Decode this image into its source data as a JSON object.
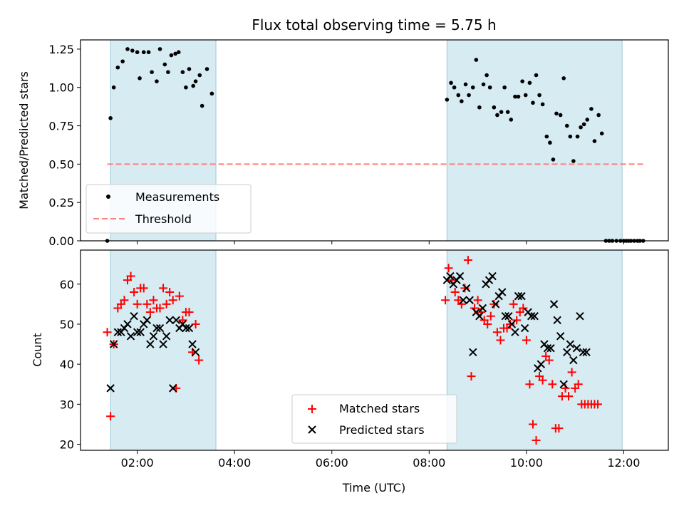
{
  "chart_data": [
    {
      "type": "scatter",
      "title": "Flux total observing time = 5.75 h",
      "xlabel": "",
      "ylabel": "Matched/Predicted stars",
      "xlim": [
        "00:50",
        "12:55"
      ],
      "ylim": [
        0,
        1.31
      ],
      "yticks": [
        "0.00",
        "0.25",
        "0.50",
        "0.75",
        "1.00",
        "1.25"
      ],
      "shaded_intervals": [
        [
          "01:27",
          "03:37"
        ],
        [
          "08:22",
          "11:58"
        ]
      ],
      "legend_position": "lower-left",
      "series": [
        {
          "name": "Measurements",
          "marker": "dot",
          "color": "#000000",
          "points": [
            [
              "01:23",
              0.0
            ],
            [
              "01:27",
              0.8
            ],
            [
              "01:31",
              1.0
            ],
            [
              "01:36",
              1.13
            ],
            [
              "01:42",
              1.17
            ],
            [
              "01:48",
              1.25
            ],
            [
              "01:54",
              1.24
            ],
            [
              "02:00",
              1.23
            ],
            [
              "02:03",
              1.06
            ],
            [
              "02:08",
              1.23
            ],
            [
              "02:14",
              1.23
            ],
            [
              "02:18",
              1.1
            ],
            [
              "02:24",
              1.04
            ],
            [
              "02:28",
              1.25
            ],
            [
              "02:34",
              1.15
            ],
            [
              "02:38",
              1.1
            ],
            [
              "02:42",
              1.21
            ],
            [
              "02:47",
              1.22
            ],
            [
              "02:51",
              1.23
            ],
            [
              "02:56",
              1.1
            ],
            [
              "03:00",
              1.0
            ],
            [
              "03:04",
              1.12
            ],
            [
              "03:09",
              1.01
            ],
            [
              "03:12",
              1.04
            ],
            [
              "03:17",
              1.08
            ],
            [
              "03:20",
              0.88
            ],
            [
              "03:26",
              1.12
            ],
            [
              "03:32",
              0.96
            ],
            [
              "08:22",
              0.92
            ],
            [
              "08:27",
              1.03
            ],
            [
              "08:31",
              1.0
            ],
            [
              "08:36",
              0.95
            ],
            [
              "08:40",
              0.91
            ],
            [
              "08:45",
              1.02
            ],
            [
              "08:49",
              0.95
            ],
            [
              "08:54",
              1.0
            ],
            [
              "08:58",
              1.18
            ],
            [
              "09:02",
              0.87
            ],
            [
              "09:07",
              1.02
            ],
            [
              "09:11",
              1.08
            ],
            [
              "09:15",
              1.0
            ],
            [
              "09:20",
              0.87
            ],
            [
              "09:24",
              0.82
            ],
            [
              "09:29",
              0.84
            ],
            [
              "09:33",
              1.0
            ],
            [
              "09:37",
              0.84
            ],
            [
              "09:41",
              0.79
            ],
            [
              "09:46",
              0.94
            ],
            [
              "09:50",
              0.94
            ],
            [
              "09:55",
              1.04
            ],
            [
              "09:59",
              0.95
            ],
            [
              "10:04",
              1.03
            ],
            [
              "10:08",
              0.9
            ],
            [
              "10:12",
              1.08
            ],
            [
              "10:16",
              0.95
            ],
            [
              "10:20",
              0.89
            ],
            [
              "10:25",
              0.68
            ],
            [
              "10:29",
              0.64
            ],
            [
              "10:33",
              0.53
            ],
            [
              "10:37",
              0.83
            ],
            [
              "10:42",
              0.82
            ],
            [
              "10:46",
              1.06
            ],
            [
              "10:50",
              0.75
            ],
            [
              "10:54",
              0.68
            ],
            [
              "10:58",
              0.52
            ],
            [
              "11:03",
              0.68
            ],
            [
              "11:07",
              0.74
            ],
            [
              "11:11",
              0.76
            ],
            [
              "11:15",
              0.79
            ],
            [
              "11:20",
              0.86
            ],
            [
              "11:24",
              0.65
            ],
            [
              "11:29",
              0.82
            ],
            [
              "11:33",
              0.7
            ],
            [
              "11:38",
              0.0
            ],
            [
              "11:42",
              0.0
            ],
            [
              "11:46",
              0.0
            ],
            [
              "11:51",
              0.0
            ],
            [
              "11:56",
              0.0
            ],
            [
              "12:00",
              0.0
            ],
            [
              "12:03",
              0.0
            ],
            [
              "12:06",
              0.0
            ],
            [
              "12:09",
              0.0
            ],
            [
              "12:13",
              0.0
            ],
            [
              "12:17",
              0.0
            ],
            [
              "12:20",
              0.0
            ],
            [
              "12:24",
              0.0
            ]
          ]
        },
        {
          "name": "Threshold",
          "line_style": "dashed",
          "color": "#ff7f7f",
          "points": [
            [
              "01:23",
              0.5
            ],
            [
              "12:24",
              0.5
            ]
          ]
        }
      ]
    },
    {
      "type": "scatter",
      "title": "",
      "xlabel": "Time (UTC)",
      "ylabel": "Count",
      "xlim": [
        "00:50",
        "12:55"
      ],
      "ylim": [
        18.5,
        68.5
      ],
      "xticks": [
        "02:00",
        "04:00",
        "06:00",
        "08:00",
        "10:00",
        "12:00"
      ],
      "yticks": [
        "20",
        "30",
        "40",
        "50",
        "60"
      ],
      "shaded_intervals": [
        [
          "01:27",
          "03:37"
        ],
        [
          "08:22",
          "11:58"
        ]
      ],
      "legend_position": "lower-center",
      "series": [
        {
          "name": "Matched stars",
          "marker": "plus",
          "color": "#ff0000",
          "points": [
            [
              "01:23",
              48
            ],
            [
              "01:27",
              27
            ],
            [
              "01:31",
              45
            ],
            [
              "01:36",
              54
            ],
            [
              "01:40",
              55
            ],
            [
              "01:44",
              56
            ],
            [
              "01:48",
              61
            ],
            [
              "01:52",
              62
            ],
            [
              "01:56",
              58
            ],
            [
              "02:00",
              55
            ],
            [
              "02:04",
              59
            ],
            [
              "02:08",
              59
            ],
            [
              "02:12",
              55
            ],
            [
              "02:16",
              53
            ],
            [
              "02:20",
              56
            ],
            [
              "02:24",
              54
            ],
            [
              "02:28",
              54
            ],
            [
              "02:32",
              59
            ],
            [
              "02:36",
              55
            ],
            [
              "02:40",
              58
            ],
            [
              "02:44",
              56
            ],
            [
              "02:48",
              34
            ],
            [
              "02:52",
              57
            ],
            [
              "02:56",
              51
            ],
            [
              "03:00",
              53
            ],
            [
              "03:04",
              53
            ],
            [
              "03:08",
              43
            ],
            [
              "03:12",
              50
            ],
            [
              "03:16",
              41
            ],
            [
              "08:20",
              56
            ],
            [
              "08:24",
              64
            ],
            [
              "08:28",
              61
            ],
            [
              "08:32",
              58
            ],
            [
              "08:36",
              56
            ],
            [
              "08:40",
              55
            ],
            [
              "08:44",
              59
            ],
            [
              "08:48",
              66
            ],
            [
              "08:52",
              37
            ],
            [
              "08:56",
              54
            ],
            [
              "09:00",
              56
            ],
            [
              "09:04",
              53
            ],
            [
              "09:08",
              51
            ],
            [
              "09:12",
              50
            ],
            [
              "09:16",
              52
            ],
            [
              "09:20",
              55
            ],
            [
              "09:24",
              48
            ],
            [
              "09:28",
              46
            ],
            [
              "09:32",
              49
            ],
            [
              "09:36",
              49
            ],
            [
              "09:40",
              50
            ],
            [
              "09:44",
              55
            ],
            [
              "09:48",
              51
            ],
            [
              "09:52",
              53
            ],
            [
              "09:56",
              54
            ],
            [
              "10:00",
              46
            ],
            [
              "10:04",
              35
            ],
            [
              "10:08",
              25
            ],
            [
              "10:12",
              21
            ],
            [
              "10:16",
              37
            ],
            [
              "10:20",
              36
            ],
            [
              "10:24",
              42
            ],
            [
              "10:28",
              41
            ],
            [
              "10:32",
              35
            ],
            [
              "10:36",
              24
            ],
            [
              "10:40",
              24
            ],
            [
              "10:44",
              32
            ],
            [
              "10:48",
              34
            ],
            [
              "10:52",
              32
            ],
            [
              "10:56",
              38
            ],
            [
              "11:00",
              34
            ],
            [
              "11:04",
              35
            ],
            [
              "11:08",
              30
            ],
            [
              "11:12",
              30
            ],
            [
              "11:16",
              30
            ],
            [
              "11:20",
              30
            ],
            [
              "11:24",
              30
            ],
            [
              "11:28",
              30
            ]
          ]
        },
        {
          "name": "Predicted stars",
          "marker": "x",
          "color": "#000000",
          "points": [
            [
              "01:27",
              34
            ],
            [
              "01:31",
              45
            ],
            [
              "01:36",
              48
            ],
            [
              "01:40",
              48
            ],
            [
              "01:44",
              49
            ],
            [
              "01:48",
              50
            ],
            [
              "01:52",
              47
            ],
            [
              "01:56",
              52
            ],
            [
              "02:00",
              48
            ],
            [
              "02:04",
              48
            ],
            [
              "02:08",
              50
            ],
            [
              "02:12",
              51
            ],
            [
              "02:16",
              45
            ],
            [
              "02:20",
              47
            ],
            [
              "02:24",
              49
            ],
            [
              "02:28",
              49
            ],
            [
              "02:32",
              45
            ],
            [
              "02:36",
              47
            ],
            [
              "02:40",
              51
            ],
            [
              "02:44",
              34
            ],
            [
              "02:48",
              51
            ],
            [
              "02:52",
              49
            ],
            [
              "02:56",
              50
            ],
            [
              "03:00",
              49
            ],
            [
              "03:04",
              49
            ],
            [
              "03:08",
              45
            ],
            [
              "03:12",
              43
            ],
            [
              "08:22",
              61
            ],
            [
              "08:26",
              62
            ],
            [
              "08:30",
              60
            ],
            [
              "08:34",
              61
            ],
            [
              "08:38",
              62
            ],
            [
              "08:42",
              56
            ],
            [
              "08:46",
              59
            ],
            [
              "08:50",
              56
            ],
            [
              "08:54",
              43
            ],
            [
              "08:58",
              53
            ],
            [
              "09:02",
              52
            ],
            [
              "09:06",
              54
            ],
            [
              "09:10",
              60
            ],
            [
              "09:14",
              61
            ],
            [
              "09:18",
              62
            ],
            [
              "09:22",
              55
            ],
            [
              "09:26",
              57
            ],
            [
              "09:30",
              58
            ],
            [
              "09:34",
              52
            ],
            [
              "09:38",
              52
            ],
            [
              "09:42",
              50
            ],
            [
              "09:46",
              48
            ],
            [
              "09:50",
              57
            ],
            [
              "09:54",
              57
            ],
            [
              "09:58",
              49
            ],
            [
              "10:02",
              53
            ],
            [
              "10:06",
              52
            ],
            [
              "10:10",
              52
            ],
            [
              "10:14",
              39
            ],
            [
              "10:18",
              40
            ],
            [
              "10:22",
              45
            ],
            [
              "10:26",
              44
            ],
            [
              "10:30",
              44
            ],
            [
              "10:34",
              55
            ],
            [
              "10:38",
              51
            ],
            [
              "10:42",
              47
            ],
            [
              "10:46",
              35
            ],
            [
              "10:50",
              43
            ],
            [
              "10:54",
              45
            ],
            [
              "10:58",
              41
            ],
            [
              "11:02",
              44
            ],
            [
              "11:06",
              52
            ],
            [
              "11:10",
              43
            ],
            [
              "11:14",
              43
            ]
          ]
        }
      ]
    }
  ]
}
